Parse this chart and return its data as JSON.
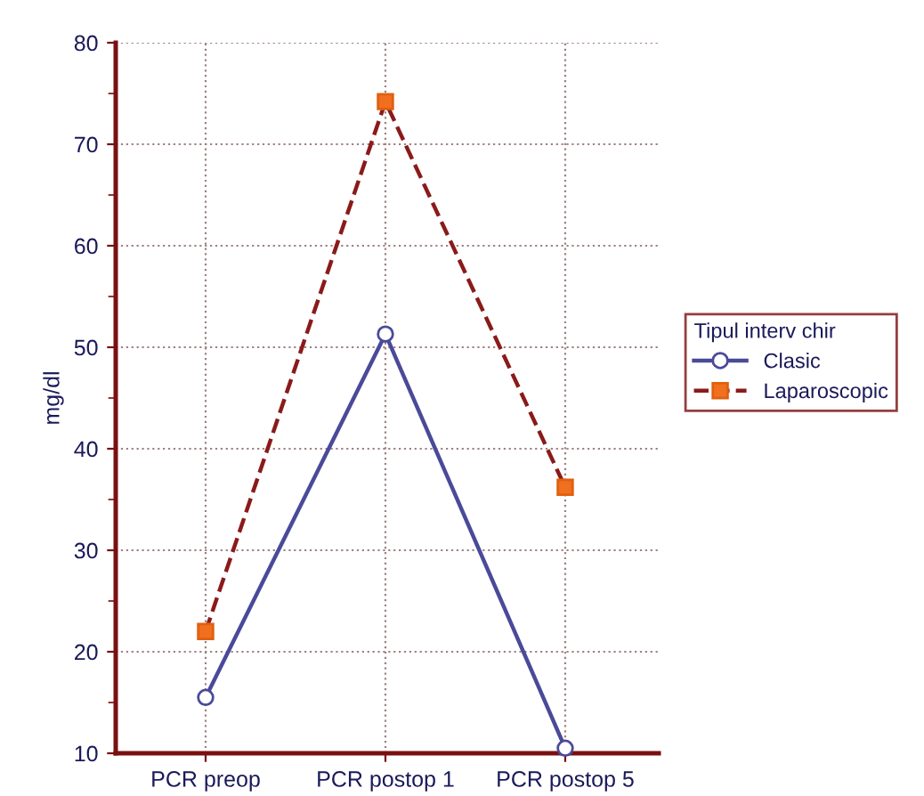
{
  "chart_data": {
    "type": "line",
    "ylabel": "mg/dl",
    "legend_title": "Tipul interv chir",
    "categories": [
      "PCR preop",
      "PCR postop 1",
      "PCR postop 5"
    ],
    "series": [
      {
        "name": "Clasic",
        "color": "#4a4a9a",
        "values": [
          15.5,
          51.3,
          10.5
        ],
        "marker": "circle",
        "line_style": "solid"
      },
      {
        "name": "Laparoscopic",
        "color": "#8b1a1a",
        "values": [
          22,
          74.2,
          36.2
        ],
        "marker": "square",
        "line_style": "dashed"
      }
    ],
    "ylim": [
      10,
      80
    ],
    "yticks": [
      10,
      20,
      30,
      40,
      50,
      60,
      70,
      80
    ],
    "grid": true,
    "legend": "right"
  }
}
